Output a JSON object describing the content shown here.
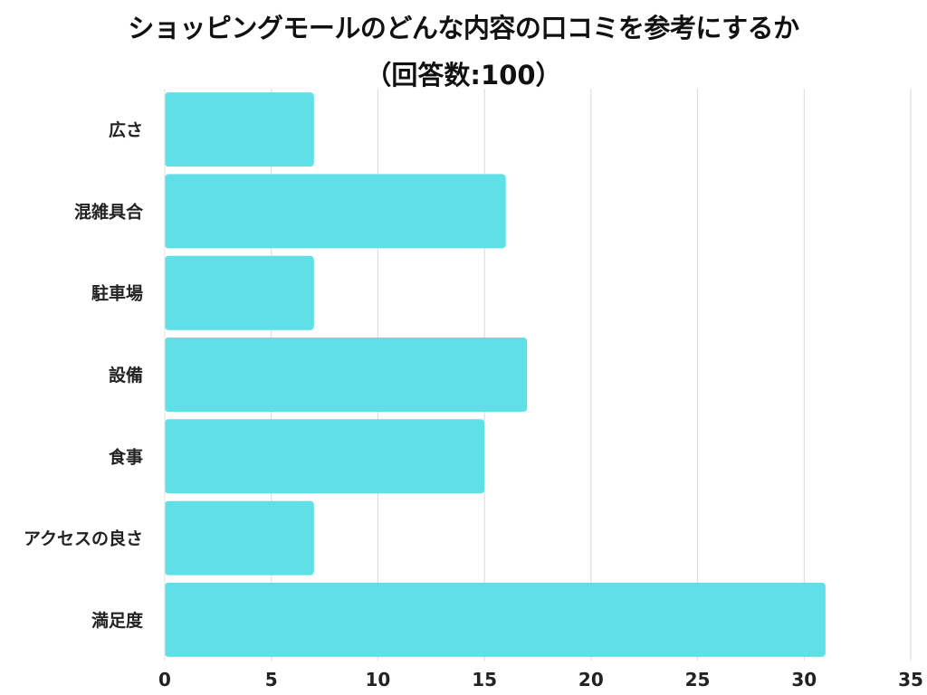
{
  "page": {
    "title_line1": "ショッピングモールのどんな内容の口コミを参考にするか",
    "title_line2": "（回答数:100）"
  },
  "chart_data": {
    "type": "bar",
    "orientation": "horizontal",
    "title": "ショッピングモールのどんな内容の口コミを参考にするか（回答数:100）",
    "categories": [
      "広さ",
      "混雑具合",
      "駐車場",
      "設備",
      "食事",
      "アクセスの良さ",
      "満足度"
    ],
    "values": [
      7,
      16,
      7,
      17,
      15,
      7,
      31
    ],
    "xlim": [
      0,
      35
    ],
    "xticks": [
      0,
      5,
      10,
      15,
      20,
      25,
      30,
      35
    ],
    "xlabel": "",
    "ylabel": "",
    "grid": true,
    "legend": "none",
    "bar_color": "#5ee0e6",
    "grid_color": "#d9d9d9",
    "text_color": "#222222"
  }
}
